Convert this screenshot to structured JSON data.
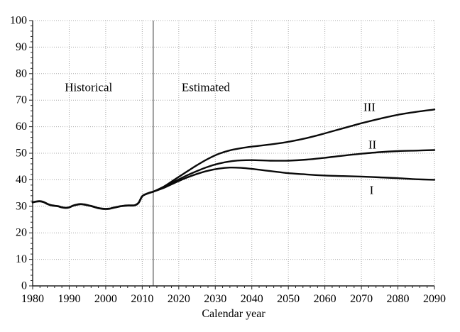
{
  "chart_data": {
    "type": "line",
    "title": "",
    "xlabel": "Calendar year",
    "ylabel": "",
    "xlim": [
      1980,
      2090
    ],
    "ylim": [
      0,
      100
    ],
    "x_ticks": [
      1980,
      1990,
      2000,
      2010,
      2020,
      2030,
      2040,
      2050,
      2060,
      2070,
      2080,
      2090
    ],
    "y_ticks": [
      0,
      10,
      20,
      30,
      40,
      50,
      60,
      70,
      80,
      90,
      100
    ],
    "x_minor_step": 2,
    "y_minor_step": 2,
    "grid": "dotted major gridlines, boxed by top (100) and right (2090) dotted lines",
    "legend_position": "inline curve labels at right",
    "divider_year": 2013,
    "style": {
      "background": "#ffffff",
      "axis_color": "#222222",
      "grid_color": "#a9a9a9",
      "divider_color": "#7f7f7f",
      "line_color": "#0a0a0a",
      "text_color": "#000000"
    },
    "annotations": [
      {
        "text": "Historical",
        "x": 1995.3,
        "y": 75.0,
        "role": "region-label"
      },
      {
        "text": "Estimated",
        "x": 2027.4,
        "y": 75.0,
        "role": "region-label"
      },
      {
        "text": "III",
        "x": 2072.2,
        "y": 67.4,
        "role": "series-label"
      },
      {
        "text": "II",
        "x": 2073.0,
        "y": 53.2,
        "role": "series-label"
      },
      {
        "text": "I",
        "x": 2072.8,
        "y": 36.1,
        "role": "series-label"
      }
    ],
    "series": [
      {
        "name": "Historical",
        "x": [
          1980,
          1981,
          1982,
          1983,
          1984,
          1985,
          1986,
          1987,
          1988,
          1989,
          1990,
          1991,
          1992,
          1993,
          1994,
          1995,
          1996,
          1997,
          1998,
          1999,
          2000,
          2001,
          2002,
          2003,
          2004,
          2005,
          2006,
          2007,
          2008,
          2009,
          2010,
          2011,
          2012,
          2013
        ],
        "y": [
          31.5,
          31.8,
          31.9,
          31.6,
          30.9,
          30.4,
          30.2,
          30.0,
          29.6,
          29.4,
          29.6,
          30.2,
          30.6,
          30.8,
          30.7,
          30.4,
          30.1,
          29.7,
          29.3,
          29.1,
          29.0,
          29.1,
          29.4,
          29.7,
          30.0,
          30.2,
          30.3,
          30.3,
          30.4,
          31.3,
          33.8,
          34.6,
          35.1,
          35.5
        ]
      },
      {
        "name": "III",
        "x": [
          2013,
          2016,
          2019,
          2022,
          2025,
          2028,
          2031,
          2034,
          2037,
          2040,
          2045,
          2050,
          2055,
          2060,
          2065,
          2070,
          2075,
          2080,
          2085,
          2090
        ],
        "y": [
          35.5,
          37.5,
          40.2,
          42.9,
          45.5,
          47.9,
          49.8,
          51.1,
          51.9,
          52.5,
          53.3,
          54.3,
          55.7,
          57.5,
          59.4,
          61.3,
          63.0,
          64.5,
          65.6,
          66.5
        ]
      },
      {
        "name": "II",
        "x": [
          2013,
          2016,
          2019,
          2022,
          2025,
          2028,
          2031,
          2034,
          2037,
          2040,
          2045,
          2050,
          2055,
          2060,
          2065,
          2070,
          2075,
          2080,
          2085,
          2090
        ],
        "y": [
          35.5,
          37.2,
          39.4,
          41.5,
          43.3,
          44.9,
          46.1,
          46.9,
          47.3,
          47.4,
          47.2,
          47.2,
          47.6,
          48.3,
          49.1,
          49.8,
          50.4,
          50.8,
          51.0,
          51.2
        ]
      },
      {
        "name": "I",
        "x": [
          2013,
          2016,
          2019,
          2022,
          2025,
          2028,
          2031,
          2034,
          2037,
          2040,
          2045,
          2050,
          2055,
          2060,
          2065,
          2070,
          2075,
          2080,
          2085,
          2090
        ],
        "y": [
          35.5,
          37.0,
          38.9,
          40.7,
          42.2,
          43.4,
          44.2,
          44.6,
          44.5,
          44.1,
          43.3,
          42.5,
          42.0,
          41.6,
          41.4,
          41.2,
          40.9,
          40.6,
          40.2,
          40.0
        ]
      }
    ]
  }
}
